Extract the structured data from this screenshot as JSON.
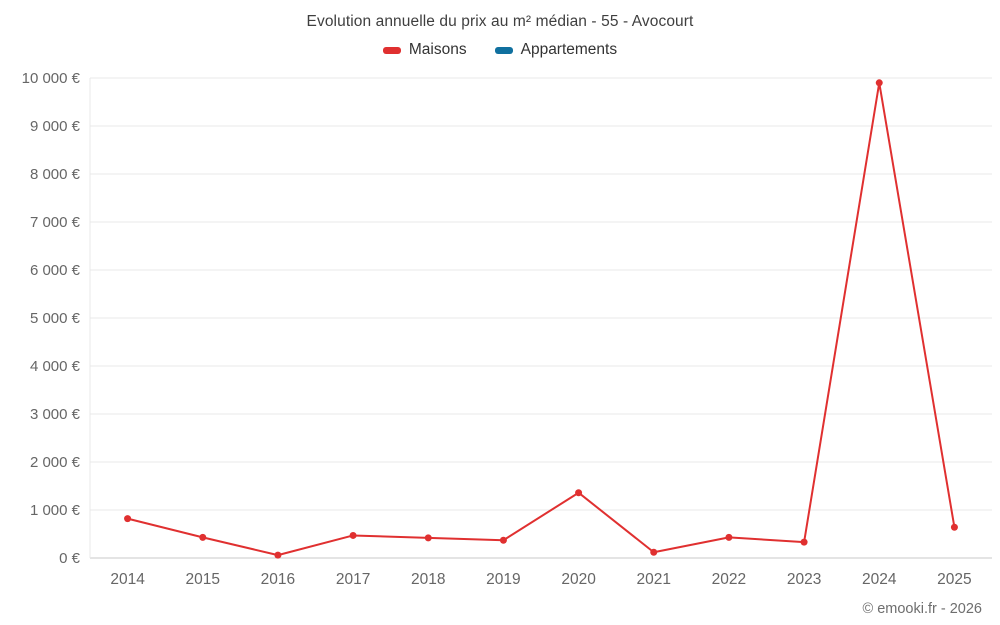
{
  "chart": {
    "title": "Evolution annuelle du prix au m² médian - 55 - Avocourt",
    "footer": "© emooki.fr - 2026"
  },
  "chart_data": {
    "type": "line",
    "title": "Evolution annuelle du prix au m² médian - 55 - Avocourt",
    "categories": [
      "2014",
      "2015",
      "2016",
      "2017",
      "2018",
      "2019",
      "2020",
      "2021",
      "2022",
      "2023",
      "2024",
      "2025"
    ],
    "series": [
      {
        "name": "Maisons",
        "color": "#e03030",
        "values": [
          820,
          430,
          60,
          470,
          420,
          370,
          1360,
          120,
          430,
          330,
          9900,
          640
        ]
      },
      {
        "name": "Appartements",
        "color": "#10709f",
        "values": []
      }
    ],
    "xlabel": "",
    "ylabel": "",
    "ylim": [
      0,
      10000
    ],
    "ytick_step": 1000,
    "ytick_suffix": " €",
    "grid": true,
    "legend_position": "top",
    "text_color": "#666666",
    "grid_color": "#e8e8e8",
    "axis_color": "#c9c9c9"
  }
}
